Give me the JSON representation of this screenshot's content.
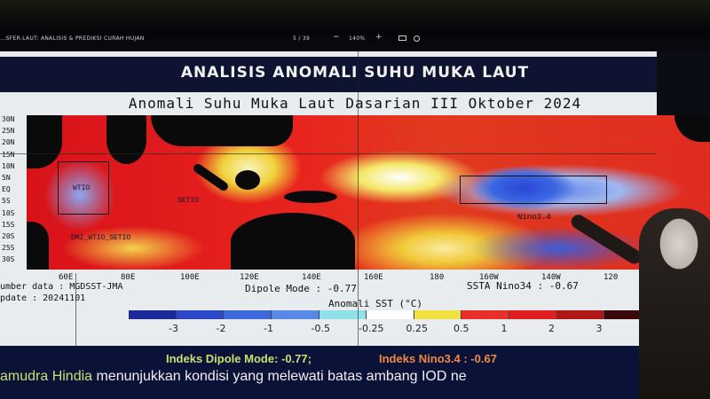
{
  "viewer": {
    "doc_title": "...SFER-LAUT: ANALISIS & PREDIKSI CURAH HUJAN",
    "page": "5 / 39",
    "zoom_out": "−",
    "zoom": "140%",
    "zoom_in": "+"
  },
  "slide": {
    "title": "ANALISIS ANOMALI SUHU MUKA LAUT",
    "subtitle": "Anomali Suhu Muka Laut Dasarian III Oktober 2024",
    "lat_labels": [
      "30N",
      "25N",
      "20N",
      "15N",
      "10N",
      "5N",
      "EQ",
      "5S",
      "10S",
      "15S",
      "20S",
      "25S",
      "30S"
    ],
    "lon_labels": [
      "60E",
      "80E",
      "100E",
      "120E",
      "140E",
      "160E",
      "180",
      "160W",
      "140W",
      "120"
    ],
    "regions": [
      "WTIO",
      "SETIO",
      "DMI_WTIO_SETIO",
      "Nino3.4"
    ],
    "source": "umber data : MGDSST-JMA",
    "update": "pdate : 20241101",
    "dipole": "Dipole Mode : -0.77",
    "nino": "SSTA Nino34 : -0.67",
    "colorbar_title": "Anomali SST (°C)",
    "colorbar_ticks": [
      "-3",
      "-2",
      "-1",
      "-0.5",
      "-0.25",
      "0.25",
      "0.5",
      "1",
      "2",
      "3"
    ],
    "colorbar_colors": [
      "#1a2a9a",
      "#2a48c8",
      "#3f68dc",
      "#5a88e6",
      "#8fe0e8",
      "#ffffff",
      "#f0e040",
      "#e8302a",
      "#e02020",
      "#b01818",
      "#3a0808"
    ]
  },
  "caption": {
    "dipole_index": "Indeks Dipole Mode: -0.77;",
    "nino_index": "Indeks Nino3.4  : -0.67",
    "highlight": "amudra Hindia",
    "sentence": " menunjukkan kondisi yang melewati batas ambang IOD ne"
  }
}
